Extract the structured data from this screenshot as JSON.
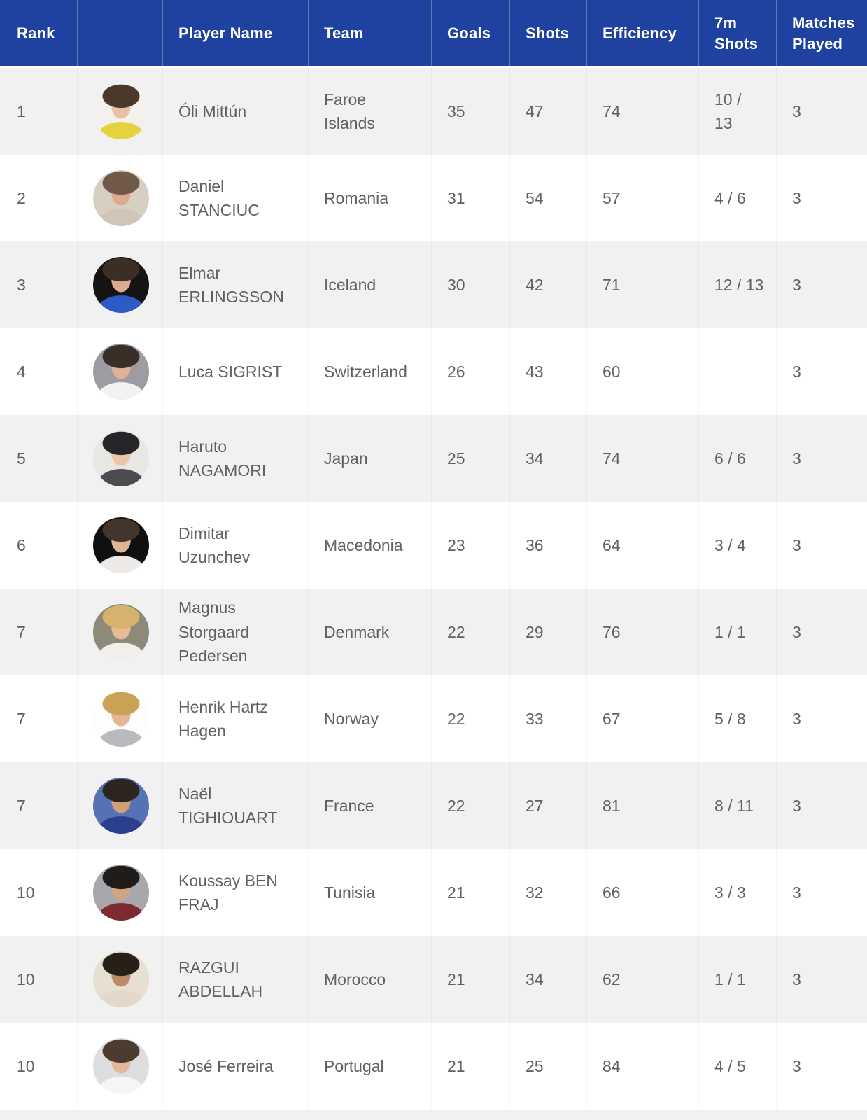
{
  "colors": {
    "header_bg": "#1f41a0",
    "header_text": "#ffffff",
    "alt_row_bg": "#f1f1f2",
    "body_text": "#616161"
  },
  "table": {
    "columns": [
      {
        "key": "rank",
        "label": "Rank"
      },
      {
        "key": "photo",
        "label": ""
      },
      {
        "key": "name",
        "label": "Player Name"
      },
      {
        "key": "team",
        "label": "Team"
      },
      {
        "key": "goals",
        "label": "Goals"
      },
      {
        "key": "shots",
        "label": "Shots"
      },
      {
        "key": "efficiency",
        "label": "Efficiency"
      },
      {
        "key": "sevenm",
        "label": "7m Shots"
      },
      {
        "key": "matches",
        "label": "Matches Played"
      }
    ],
    "rows": [
      {
        "rank": "1",
        "name": "Óli Mittún",
        "team": "Faroe Islands",
        "goals": "35",
        "shots": "47",
        "efficiency": "74",
        "sevenm": "10 /\n13",
        "matches": "3",
        "avatar": {
          "bg": "#f4f1ec",
          "hair": "#4a382b",
          "skin": "#e9c0a6",
          "jersey": "#e6d23f"
        }
      },
      {
        "rank": "2",
        "name": "Daniel STANCIUC",
        "team": "Romania",
        "goals": "31",
        "shots": "54",
        "efficiency": "57",
        "sevenm": "4 / 6",
        "matches": "3",
        "avatar": {
          "bg": "#d8cfc3",
          "hair": "#6f5a49",
          "skin": "#dcab8e",
          "jersey": "#cfc5b9"
        }
      },
      {
        "rank": "3",
        "name": "Elmar ERLINGSSON",
        "team": "Iceland",
        "goals": "30",
        "shots": "42",
        "efficiency": "71",
        "sevenm": "12 / 13",
        "matches": "3",
        "avatar": {
          "bg": "#141414",
          "hair": "#3b2e25",
          "skin": "#dcab8e",
          "jersey": "#2b5bc7"
        }
      },
      {
        "rank": "4",
        "name": "Luca SIGRIST",
        "team": "Switzerland",
        "goals": "26",
        "shots": "43",
        "efficiency": "60",
        "sevenm": "",
        "matches": "3",
        "avatar": {
          "bg": "#9c9ca2",
          "hair": "#3a2f28",
          "skin": "#e0b295",
          "jersey": "#f2f2f4"
        }
      },
      {
        "rank": "5",
        "name": "Haruto NAGAMORI",
        "team": "Japan",
        "goals": "25",
        "shots": "34",
        "efficiency": "74",
        "sevenm": "6 / 6",
        "matches": "3",
        "avatar": {
          "bg": "#e9e7e4",
          "hair": "#26262a",
          "skin": "#ecc5a8",
          "jersey": "#4b4b50"
        }
      },
      {
        "rank": "6",
        "name": "Dimitar Uzunchev",
        "team": "Macedonia",
        "goals": "23",
        "shots": "36",
        "efficiency": "64",
        "sevenm": "3 / 4",
        "matches": "3",
        "avatar": {
          "bg": "#101010",
          "hair": "#42352c",
          "skin": "#e2b495",
          "jersey": "#ece9e6"
        }
      },
      {
        "rank": "7",
        "name": "Magnus Storgaard Pedersen",
        "team": "Denmark",
        "goals": "22",
        "shots": "29",
        "efficiency": "76",
        "sevenm": "1 / 1",
        "matches": "3",
        "avatar": {
          "bg": "#8e8a79",
          "hair": "#d7b26d",
          "skin": "#e6bb97",
          "jersey": "#f0efec"
        }
      },
      {
        "rank": "7",
        "name": "Henrik Hartz Hagen",
        "team": "Norway",
        "goals": "22",
        "shots": "33",
        "efficiency": "67",
        "sevenm": "5 / 8",
        "matches": "3",
        "avatar": {
          "bg": "#fdfdfd",
          "hair": "#c8a257",
          "skin": "#e3b698",
          "jersey": "#b9babd"
        }
      },
      {
        "rank": "7",
        "name": "Naël TIGHIOUART",
        "team": "France",
        "goals": "22",
        "shots": "27",
        "efficiency": "81",
        "sevenm": "8 / 11",
        "matches": "3",
        "avatar": {
          "bg": "#5572b4",
          "hair": "#2c241e",
          "skin": "#d3a075",
          "jersey": "#2c3f8e"
        }
      },
      {
        "rank": "10",
        "name": "Koussay BEN FRAJ",
        "team": "Tunisia",
        "goals": "21",
        "shots": "32",
        "efficiency": "66",
        "sevenm": "3 / 3",
        "matches": "3",
        "avatar": {
          "bg": "#a8a8ac",
          "hair": "#201c19",
          "skin": "#cfa584",
          "jersey": "#7e2a31"
        }
      },
      {
        "rank": "10",
        "name": "RAZGUI ABDELLAH",
        "team": "Morocco",
        "goals": "21",
        "shots": "34",
        "efficiency": "62",
        "sevenm": "1 / 1",
        "matches": "3",
        "avatar": {
          "bg": "#e8dfd3",
          "hair": "#262019",
          "skin": "#bd8c67",
          "jersey": "#e2d9cb"
        }
      },
      {
        "rank": "10",
        "name": "José Ferreira",
        "team": "Portugal",
        "goals": "21",
        "shots": "25",
        "efficiency": "84",
        "sevenm": "4 / 5",
        "matches": "3",
        "avatar": {
          "bg": "#dedee0",
          "hair": "#4c3c30",
          "skin": "#e2b89c",
          "jersey": "#f5f5f7"
        }
      }
    ]
  }
}
